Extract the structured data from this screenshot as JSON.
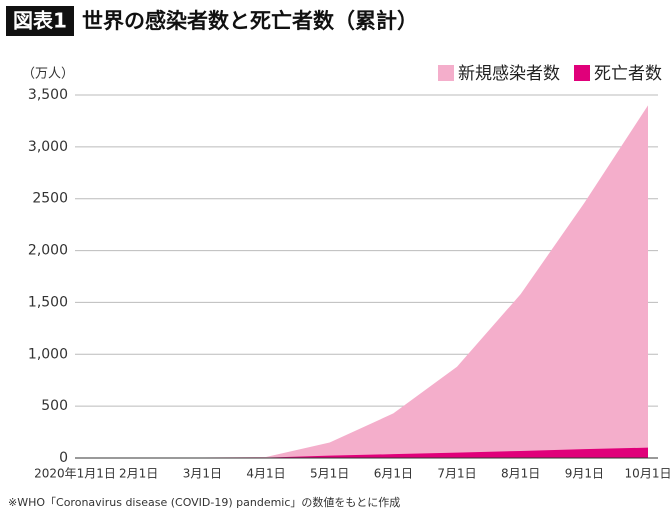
{
  "chart_data": {
    "type": "area",
    "badge": "図表1",
    "title": "世界の感染者数と死亡者数（累計）",
    "unit_label": "（万人）",
    "note": "※WHO「Coronavirus disease (COVID-19) pandemic」の数値をもとに作成",
    "categories": [
      "2020年1月1日",
      "2月1日",
      "3月1日",
      "4月1日",
      "5月1日",
      "6月1日",
      "7月1日",
      "8月1日",
      "9月1日",
      "10月1日"
    ],
    "series": [
      {
        "name": "新規感染者数",
        "color": "#f4aecb",
        "values": [
          0,
          1,
          5,
          10,
          150,
          430,
          880,
          1580,
          2460,
          3400
        ]
      },
      {
        "name": "死亡者数",
        "color": "#e0007a",
        "values": [
          0,
          0,
          0,
          4,
          23,
          37,
          52,
          68,
          85,
          100
        ]
      }
    ],
    "ylim": [
      0,
      3500
    ],
    "yticks": [
      0,
      500,
      {
        "value": 1000,
        "label": "1,000"
      },
      {
        "value": 1500,
        "label": "1,500"
      },
      {
        "value": 2000,
        "label": "2,000"
      },
      {
        "value": 2500,
        "label": "2500"
      },
      {
        "value": 3000,
        "label": "3,000"
      },
      {
        "value": 3500,
        "label": "3,500"
      }
    ],
    "grid": true,
    "legend": "top-right"
  }
}
